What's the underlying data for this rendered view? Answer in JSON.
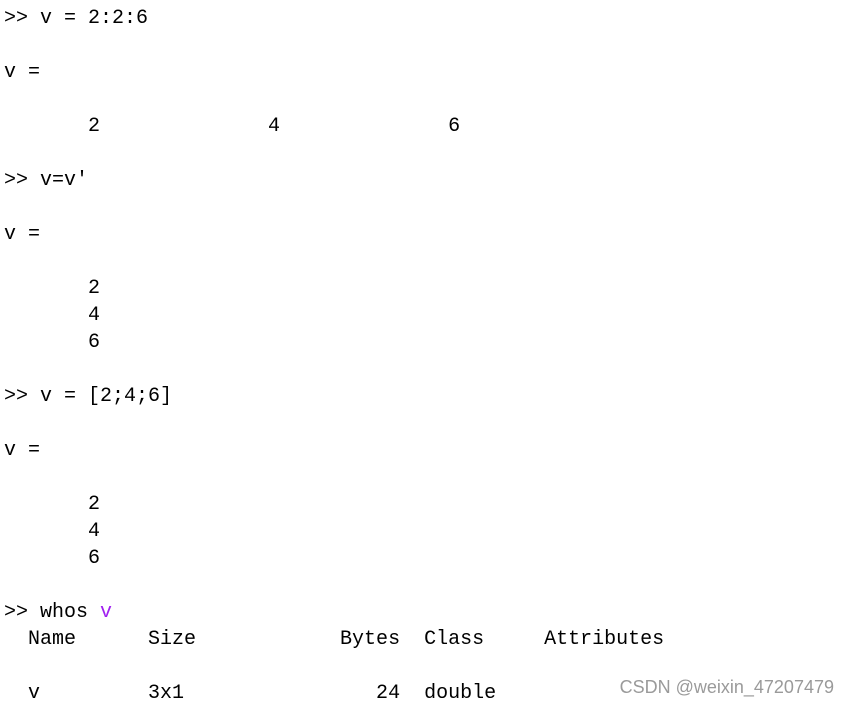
{
  "console": {
    "lines": [
      {
        "type": "command",
        "text": ">> v = 2:2:6"
      },
      {
        "type": "blank",
        "text": ""
      },
      {
        "type": "output",
        "text": "v ="
      },
      {
        "type": "blank",
        "text": ""
      },
      {
        "type": "output",
        "text": "       2              4              6"
      },
      {
        "type": "blank",
        "text": ""
      },
      {
        "type": "command",
        "text": ">> v=v'"
      },
      {
        "type": "blank",
        "text": ""
      },
      {
        "type": "output",
        "text": "v ="
      },
      {
        "type": "blank",
        "text": ""
      },
      {
        "type": "output",
        "text": "       2"
      },
      {
        "type": "output",
        "text": "       4"
      },
      {
        "type": "output",
        "text": "       6"
      },
      {
        "type": "blank",
        "text": ""
      },
      {
        "type": "command",
        "text": ">> v = [2;4;6]"
      },
      {
        "type": "blank",
        "text": ""
      },
      {
        "type": "output",
        "text": "v ="
      },
      {
        "type": "blank",
        "text": ""
      },
      {
        "type": "output",
        "text": "       2"
      },
      {
        "type": "output",
        "text": "       4"
      },
      {
        "type": "output",
        "text": "       6"
      },
      {
        "type": "blank",
        "text": ""
      },
      {
        "type": "command",
        "text": ">> whos ",
        "arg": "v"
      },
      {
        "type": "output",
        "text": "  Name      Size            Bytes  Class     Attributes"
      },
      {
        "type": "blank",
        "text": ""
      },
      {
        "type": "output",
        "text": "  v         3x1                24  double"
      }
    ],
    "arg_color": "#a020f0"
  },
  "watermark": "CSDN @weixin_47207479"
}
